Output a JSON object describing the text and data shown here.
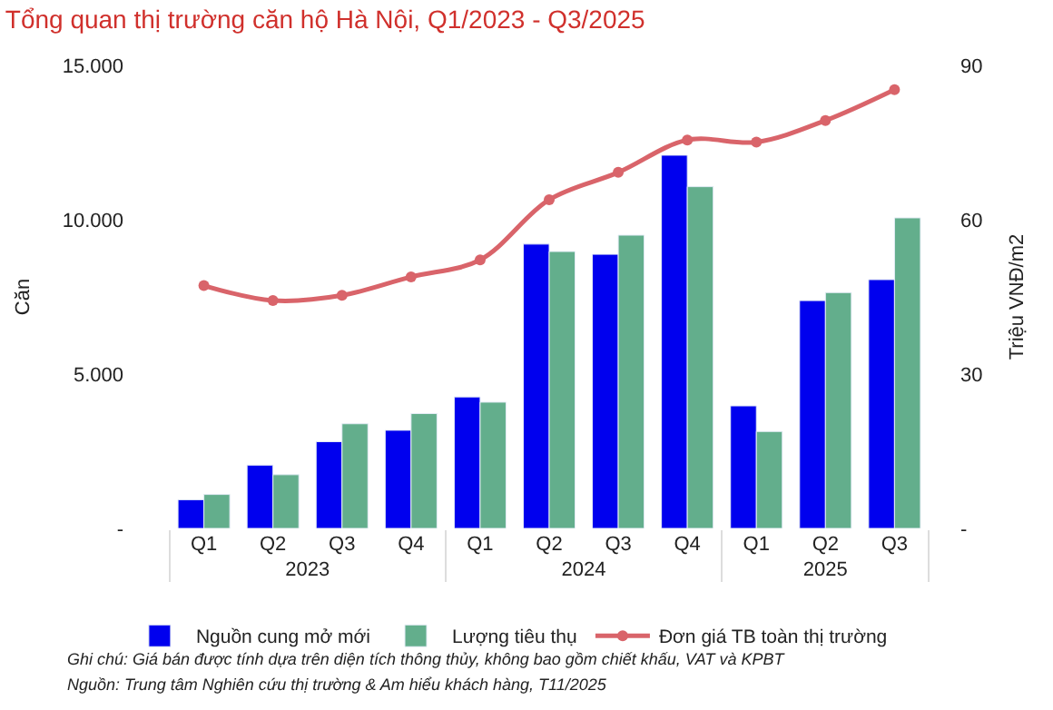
{
  "chart_data": {
    "type": "bar",
    "title": "Tổng quan thị trường căn hộ Hà Nội, Q1/2023 - Q3/2025",
    "categories": [
      "Q1",
      "Q2",
      "Q3",
      "Q4",
      "Q1",
      "Q2",
      "Q3",
      "Q4",
      "Q1",
      "Q2",
      "Q3"
    ],
    "series": [
      {
        "name": "Nguồn cung mở mới",
        "color": "#0000ee",
        "values": [
          930,
          2050,
          2810,
          3180,
          4260,
          9210,
          8880,
          12090,
          3970,
          7380,
          8060
        ]
      },
      {
        "name": "Lượng tiêu thụ",
        "color": "#63ae8c",
        "values": [
          1100,
          1740,
          3390,
          3720,
          4090,
          8970,
          9500,
          11070,
          3140,
          7640,
          10060
        ]
      },
      {
        "name": "Đơn giá TB toàn thị trường",
        "color": "#d9646a",
        "type": "line",
        "axis": "y2",
        "marker": "circle",
        "values": [
          47.2,
          44.3,
          45.3,
          48.9,
          52.2,
          63.9,
          69.2,
          75.5,
          75.1,
          79.3,
          85.3
        ]
      }
    ],
    "ylabel": "Căn",
    "y2label": "Triệu VNĐ/m2",
    "ylim": [
      0,
      15000
    ],
    "yticks": [
      {
        "value": 0,
        "label": "-"
      },
      {
        "value": 5000,
        "label": "5.000"
      },
      {
        "value": 10000,
        "label": "10.000"
      },
      {
        "value": 15000,
        "label": "15.000"
      }
    ],
    "y2lim": [
      0,
      90
    ],
    "y2ticks": [
      {
        "value": 0,
        "label": "-"
      },
      30,
      60,
      90
    ],
    "legend": "bottom",
    "annotations": [
      "2023",
      "2024",
      "2025",
      "Ghi chú: Giá bán được tính dựa trên diện tích thông thủy, không bao gồm chiết khấu, VAT và KPBT",
      "Nguồn: Trung tâm Nghiên cứu thị trường & Am hiểu khách hàng, T11/2025"
    ]
  }
}
